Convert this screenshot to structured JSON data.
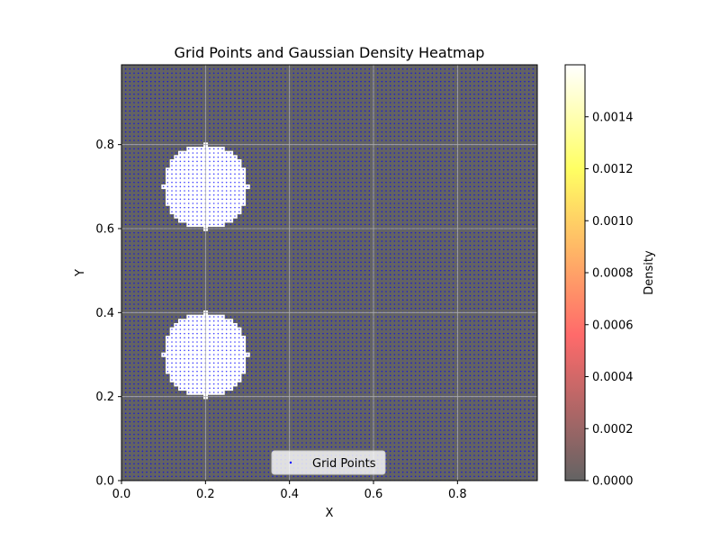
{
  "chart_data": {
    "type": "heatmap",
    "title": "Grid Points and Gaussian Density Heatmap",
    "xlabel": "X",
    "ylabel": "Y",
    "xlim": [
      0.0,
      0.99
    ],
    "ylim": [
      0.0,
      0.99
    ],
    "xticks": [
      "0.0",
      "0.2",
      "0.4",
      "0.6",
      "0.8"
    ],
    "xtick_values": [
      0.0,
      0.2,
      0.4,
      0.6,
      0.8
    ],
    "yticks": [
      "0.0",
      "0.2",
      "0.4",
      "0.6",
      "0.8"
    ],
    "ytick_values": [
      0.0,
      0.2,
      0.4,
      0.6,
      0.8
    ],
    "grid": true,
    "grid_points": {
      "start": 0.0,
      "end": 0.99,
      "step": 0.01,
      "color": "#0000ff"
    },
    "density_blobs": [
      {
        "center_x": 0.2,
        "center_y": 0.7,
        "radius": 0.1
      },
      {
        "center_x": 0.2,
        "center_y": 0.3,
        "radius": 0.1
      }
    ],
    "background_color": "#636363",
    "blob_color": "#ffffff",
    "legend": {
      "label": "Grid Points",
      "placement": "lower center"
    },
    "colorbar": {
      "label": "Density",
      "min": 0.0,
      "max": 0.0016,
      "ticks": [
        "0.0000",
        "0.0002",
        "0.0004",
        "0.0006",
        "0.0008",
        "0.0010",
        "0.0012",
        "0.0014"
      ],
      "tick_values": [
        0.0,
        0.0002,
        0.0004,
        0.0006,
        0.0008,
        0.001,
        0.0012,
        0.0014
      ],
      "colormap": "hot_r with alpha",
      "color_stops": [
        "#636363",
        "#ff6a6a",
        "#ffff63",
        "#ffffff"
      ]
    }
  }
}
